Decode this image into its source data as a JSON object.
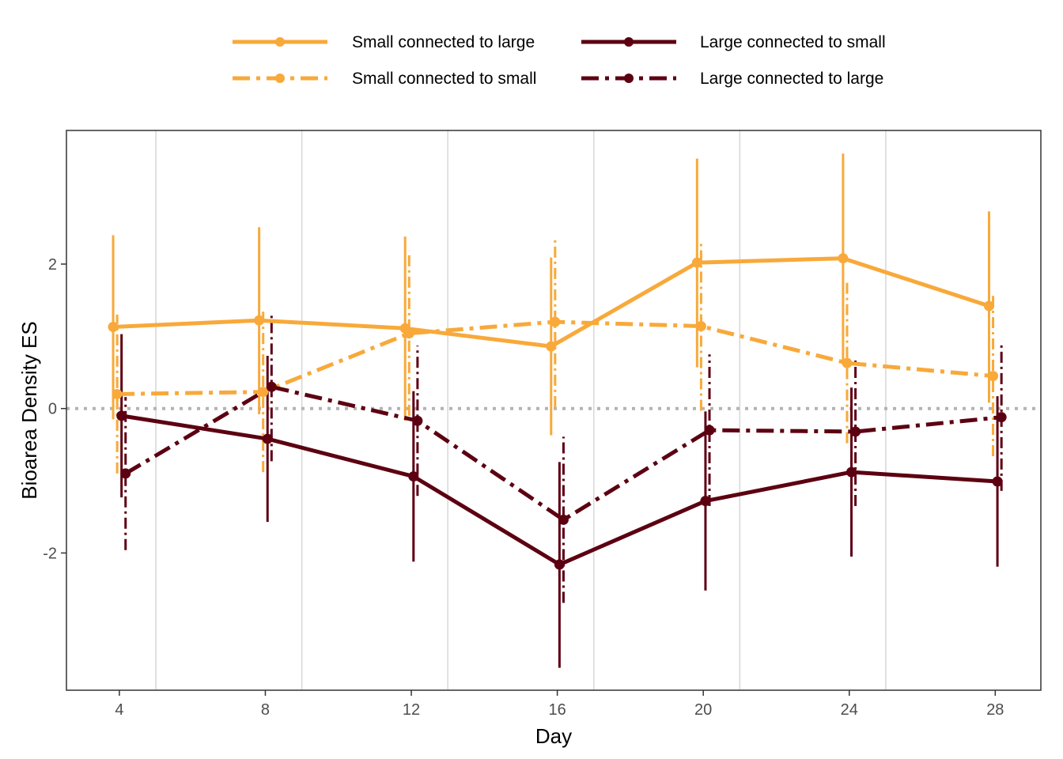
{
  "chart_data": {
    "type": "line",
    "title": "",
    "xlabel": "Day",
    "ylabel": "Bioarea Density ES",
    "x": [
      4,
      8,
      12,
      16,
      20,
      24,
      28
    ],
    "x_tick_labels": [
      "4",
      "8",
      "12",
      "16",
      "20",
      "24",
      "28"
    ],
    "y_tick_values": [
      -2,
      0,
      2
    ],
    "y_tick_labels": [
      "-2",
      "0",
      "2"
    ],
    "xlim": [
      2.55,
      29.25
    ],
    "ylim": [
      -3.9,
      3.85
    ],
    "reference_line": {
      "y": 0,
      "style": "dotted",
      "color": "#b3b3b3"
    },
    "minor_vertical_gridlines_at": [
      5,
      9,
      13,
      17,
      21,
      25
    ],
    "grid": "vertical only",
    "legend_position": "top",
    "series": [
      {
        "name": "Small connected to large",
        "color": "#f8a93a",
        "line_style": "solid",
        "dodge": -0.17,
        "values": [
          1.13,
          1.22,
          1.11,
          0.86,
          2.02,
          2.08,
          1.42
        ],
        "lower": [
          -0.15,
          -0.08,
          -0.17,
          -0.37,
          0.57,
          0.64,
          0.08
        ],
        "upper": [
          2.4,
          2.51,
          2.38,
          2.09,
          3.46,
          3.53,
          2.73
        ]
      },
      {
        "name": "Small connected to small",
        "color": "#f8a93a",
        "line_style": "dashdot",
        "dodge": -0.06,
        "values": [
          0.2,
          0.23,
          1.04,
          1.2,
          1.14,
          0.63,
          0.45
        ],
        "lower": [
          -0.9,
          -0.88,
          -0.1,
          0.02,
          -0.03,
          -0.48,
          -0.66
        ],
        "upper": [
          1.3,
          1.34,
          2.18,
          2.37,
          2.3,
          1.74,
          1.56
        ]
      },
      {
        "name": "Large connected to small",
        "color": "#5c0011",
        "line_style": "solid",
        "dodge": 0.06,
        "values": [
          -0.1,
          -0.42,
          -0.94,
          -2.16,
          -1.28,
          -0.88,
          -1.01
        ],
        "lower": [
          -1.23,
          -1.57,
          -2.12,
          -3.59,
          -2.52,
          -2.05,
          -2.19
        ],
        "upper": [
          1.03,
          0.73,
          0.24,
          -0.74,
          -0.04,
          0.29,
          0.17
        ]
      },
      {
        "name": "Large connected to large",
        "color": "#5c0011",
        "line_style": "dashdot",
        "dodge": 0.17,
        "values": [
          -0.9,
          0.3,
          -0.17,
          -1.54,
          -0.3,
          -0.32,
          -0.12
        ],
        "lower": [
          -1.96,
          -0.73,
          -1.21,
          -2.69,
          -1.35,
          -1.35,
          -1.14
        ],
        "upper": [
          0.16,
          1.33,
          0.87,
          -0.39,
          0.75,
          0.71,
          0.9
        ]
      }
    ]
  }
}
